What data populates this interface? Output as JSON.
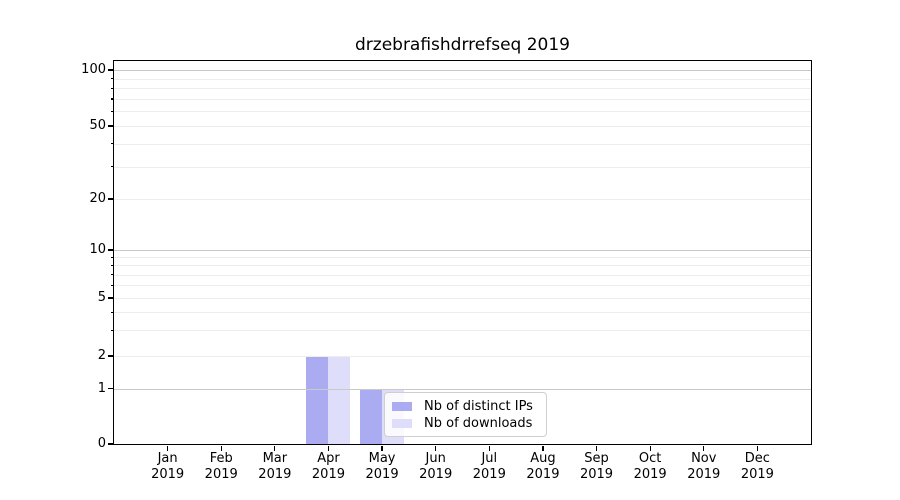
{
  "chart_data": {
    "type": "bar",
    "title": "drzebrafishdrrefseq 2019",
    "x": {
      "months": [
        "Jan",
        "Feb",
        "Mar",
        "Apr",
        "May",
        "Jun",
        "Jul",
        "Aug",
        "Sep",
        "Oct",
        "Nov",
        "Dec"
      ],
      "year": "2019"
    },
    "y": {
      "scale": "symlog",
      "ticks": [
        0,
        1,
        2,
        5,
        10,
        20,
        50,
        100
      ],
      "major_grid_values": [
        1,
        10,
        100
      ],
      "minor_grid_values": [
        3,
        4,
        6,
        7,
        8,
        9,
        30,
        40,
        60,
        70,
        80,
        90
      ],
      "range_top": 110
    },
    "series": [
      {
        "name": "Nb of distinct IPs",
        "color": "#ababf2",
        "values": [
          0,
          0,
          0,
          2,
          1,
          0,
          0,
          0,
          0,
          0,
          0,
          0
        ]
      },
      {
        "name": "Nb of downloads",
        "color": "#dedefa",
        "values": [
          0,
          0,
          0,
          2,
          1,
          0,
          0,
          0,
          0,
          0,
          0,
          0
        ]
      }
    ],
    "legend_position": "lower center",
    "grid": true,
    "colors": {
      "spine": "#000000",
      "grid_major": "#c9c9c9",
      "grid_minor": "#ededed",
      "legend_border": "#cfcfcf"
    }
  }
}
